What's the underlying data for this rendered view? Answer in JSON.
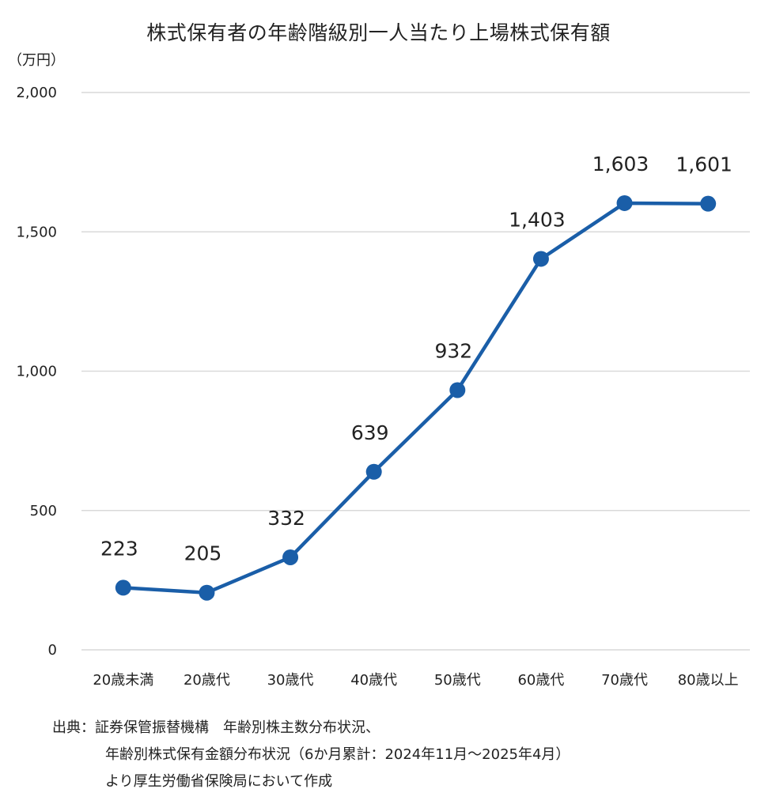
{
  "chart_data": {
    "type": "line",
    "title": "株式保有者の年齢階級別一人当たり上場株式保有額",
    "unit_label": "（万円）",
    "categories": [
      "20歳未満",
      "20歳代",
      "30歳代",
      "40歳代",
      "50歳代",
      "60歳代",
      "70歳代",
      "80歳以上"
    ],
    "series": [
      {
        "values": [
          223,
          205,
          332,
          639,
          932,
          1403,
          1603,
          1601
        ],
        "data_labels": [
          "223",
          "205",
          "332",
          "639",
          "932",
          "1,403",
          "1,603",
          "1,601"
        ],
        "color": "#1a5ea8"
      }
    ],
    "yticks": [
      0,
      500,
      1000,
      1500,
      2000
    ],
    "ytick_labels": [
      "0",
      "500",
      "1,000",
      "1,500",
      "2,000"
    ],
    "ylim": [
      0,
      2000
    ],
    "grid": true,
    "gridline_color": "#d9d9d9",
    "legend": "none"
  },
  "source": {
    "line1": "出典：証券保管振替機構　年齢別株主数分布状況、",
    "line2": "年齢別株式保有金額分布状況（6か月累計：2024年11月～2025年4月）",
    "line3": "より厚生労働省保険局において作成"
  }
}
